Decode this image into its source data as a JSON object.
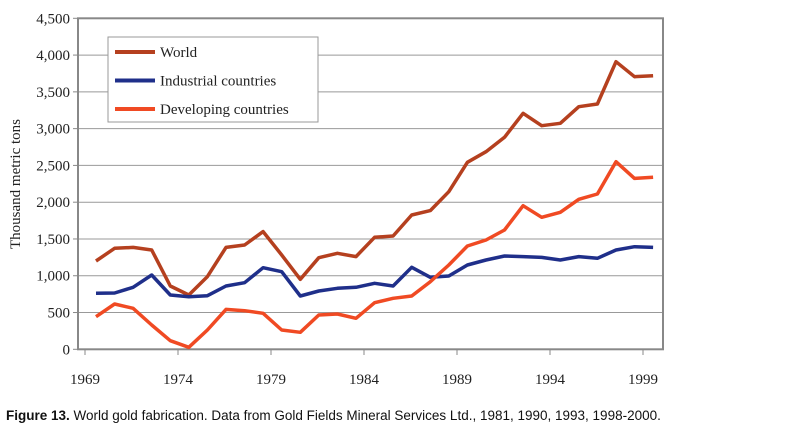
{
  "chart_data": {
    "type": "line",
    "title": "",
    "xlabel": "",
    "ylabel": "Thousand metric tons",
    "ylim": [
      0,
      4500
    ],
    "yticks": [
      "0",
      "500",
      "1,000",
      "1,500",
      "2,000",
      "2,500",
      "3,000",
      "3,500",
      "4,000",
      "4,500"
    ],
    "xticks": [
      "1969",
      "1974",
      "1979",
      "1984",
      "1989",
      "1994",
      "1999"
    ],
    "grid": "horizontal",
    "legend_position": "top-left",
    "x": [
      1969,
      1970,
      1971,
      1972,
      1973,
      1974,
      1975,
      1976,
      1977,
      1978,
      1979,
      1980,
      1981,
      1982,
      1983,
      1984,
      1985,
      1986,
      1987,
      1988,
      1989,
      1990,
      1991,
      1992,
      1993,
      1994,
      1995,
      1996,
      1997,
      1998,
      1999
    ],
    "series": [
      {
        "name": "World",
        "color": "#b5401f",
        "values": [
          1200,
          1373,
          1386,
          1350,
          860,
          738,
          988,
          1386,
          1418,
          1600,
          1282,
          952,
          1245,
          1305,
          1260,
          1522,
          1540,
          1826,
          1885,
          2143,
          2542,
          2686,
          2882,
          3208,
          3040,
          3072,
          3298,
          3335,
          3910,
          3706,
          3720
        ]
      },
      {
        "name": "Industrial countries",
        "color": "#1f2f8a",
        "values": [
          761,
          765,
          843,
          1010,
          738,
          715,
          729,
          860,
          906,
          1110,
          1055,
          725,
          793,
          829,
          843,
          897,
          860,
          1115,
          979,
          997,
          1146,
          1214,
          1268,
          1260,
          1250,
          1214,
          1260,
          1237,
          1350,
          1395,
          1386
        ]
      },
      {
        "name": "Developing countries",
        "color": "#f04a23",
        "values": [
          443,
          616,
          557,
          330,
          117,
          27,
          262,
          543,
          525,
          489,
          262,
          231,
          466,
          480,
          421,
          634,
          693,
          725,
          919,
          1146,
          1404,
          1486,
          1622,
          1952,
          1794,
          1862,
          2039,
          2111,
          2550,
          2324,
          2338
        ]
      }
    ]
  },
  "caption": {
    "label": "Figure 13.",
    "text": " World gold fabrication.  Data from Gold Fields Mineral Services Ltd., 1981, 1990, 1993, 1998-2000."
  }
}
